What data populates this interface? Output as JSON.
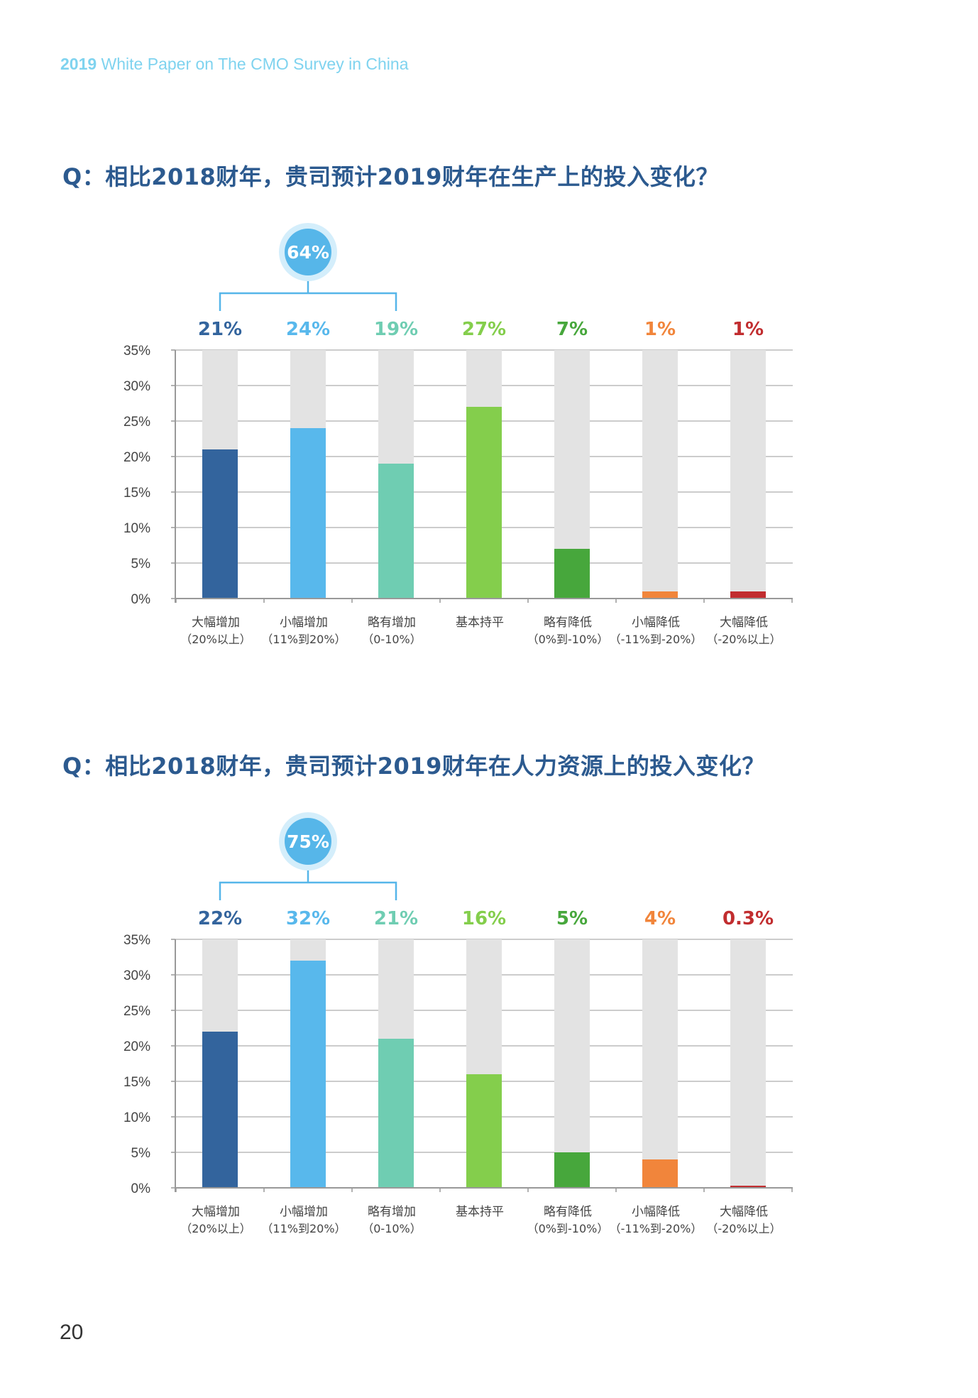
{
  "header": {
    "year": "2019",
    "title_rest": " White Paper on The CMO Survey in China"
  },
  "page_number": "20",
  "colors": {
    "question": "#2c5a8f",
    "track": "#e3e3e3",
    "group_bracket": "#56b6e9",
    "bar_palette": [
      "#33649d",
      "#58b8ec",
      "#6fcdb2",
      "#84ce4c",
      "#47a73c",
      "#f1853b",
      "#c12d2f"
    ]
  },
  "chart_data": [
    {
      "type": "bar",
      "title": "Q：相比2018财年，贵司预计2019财年在生产上的投入变化？",
      "group_label": "64%",
      "categories": [
        [
          "大幅增加",
          "（20%以上）"
        ],
        [
          "小幅增加",
          "（11%到20%）"
        ],
        [
          "略有增加",
          "（0-10%）"
        ],
        [
          "基本持平",
          ""
        ],
        [
          "略有降低",
          "（0%到-10%）"
        ],
        [
          "小幅降低",
          "（-11%到-20%）"
        ],
        [
          "大幅降低",
          "（-20%以上）"
        ]
      ],
      "values": [
        21,
        24,
        19,
        27,
        7,
        1,
        1
      ],
      "value_labels": [
        "21%",
        "24%",
        "19%",
        "27%",
        "7%",
        "1%",
        "1%"
      ],
      "yticks": [
        "0%",
        "5%",
        "10%",
        "15%",
        "20%",
        "25%",
        "30%",
        "35%"
      ],
      "ylim": [
        0,
        35
      ],
      "grid": true
    },
    {
      "type": "bar",
      "title": "Q：相比2018财年，贵司预计2019财年在人力资源上的投入变化？",
      "group_label": "75%",
      "categories": [
        [
          "大幅增加",
          "（20%以上）"
        ],
        [
          "小幅增加",
          "（11%到20%）"
        ],
        [
          "略有增加",
          "（0-10%）"
        ],
        [
          "基本持平",
          ""
        ],
        [
          "略有降低",
          "（0%到-10%）"
        ],
        [
          "小幅降低",
          "（-11%到-20%）"
        ],
        [
          "大幅降低",
          "（-20%以上）"
        ]
      ],
      "values": [
        22,
        32,
        21,
        16,
        5,
        4,
        0.3
      ],
      "value_labels": [
        "22%",
        "32%",
        "21%",
        "16%",
        "5%",
        "4%",
        "0.3%"
      ],
      "yticks": [
        "0%",
        "5%",
        "10%",
        "15%",
        "20%",
        "25%",
        "30%",
        "35%"
      ],
      "ylim": [
        0,
        35
      ],
      "grid": true
    }
  ]
}
